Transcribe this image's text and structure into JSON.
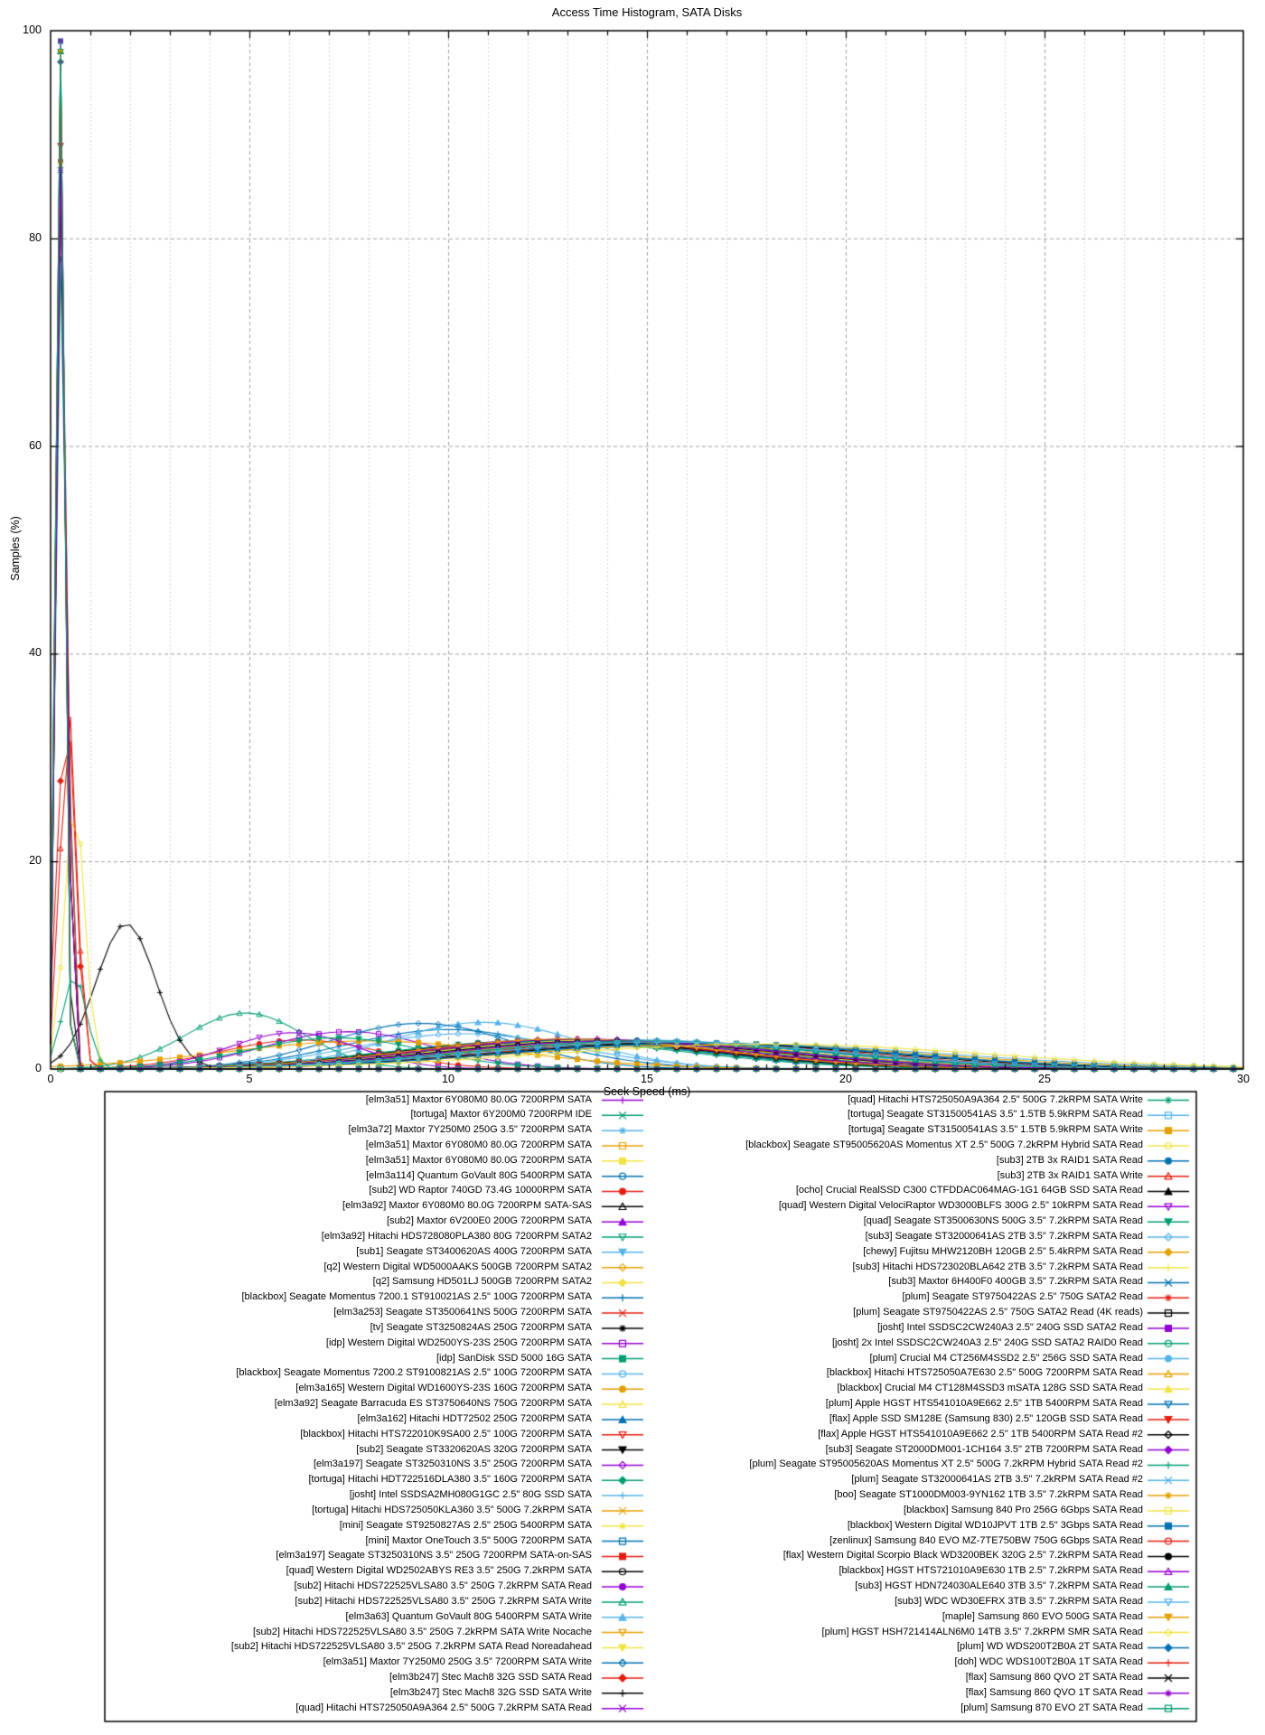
{
  "title": "Access Time Histogram, SATA Disks",
  "axes": {
    "xlabel": "Seek Speed (ms)",
    "ylabel": "Samples (%)",
    "x_ticks": [
      0,
      5,
      10,
      15,
      20,
      25,
      30
    ],
    "y_ticks": [
      0,
      20,
      40,
      60,
      80,
      100
    ]
  },
  "style": {
    "background": "#ffffff",
    "border_color": "#000000",
    "grid_minor_color": "#c8c8c8",
    "grid_major_color": "#a0a0a0",
    "palette": [
      "#9400d3",
      "#009e73",
      "#56b4e9",
      "#e69f00",
      "#f0e442",
      "#0072b2",
      "#e51e10",
      "#000000"
    ],
    "marker_cycle": [
      "plus",
      "cross",
      "asterisk",
      "square-open",
      "square-filled",
      "circle-open",
      "circle-filled",
      "triangle-up-open",
      "triangle-up-filled",
      "triangle-down-open",
      "triangle-down-filled",
      "diamond-open",
      "diamond-filled"
    ]
  },
  "chart_data": {
    "type": "line",
    "title": "Access Time Histogram, SATA Disks",
    "xlabel": "Seek Speed (ms)",
    "ylabel": "Samples (%)",
    "xlim": [
      0,
      30
    ],
    "ylim": [
      0,
      100
    ],
    "grid": true,
    "legend_position": "below",
    "bin_ms": 0.5,
    "series": [
      {
        "label": "[elm3a51] Maxtor 6Y080M0 80.0G 7200RPM SATA",
        "peak_ms": 13.5,
        "peak_pct": 2.7,
        "spread_ms": 4.2
      },
      {
        "label": "[tortuga] Maxtor 6Y200M0 7200RPM IDE",
        "peak_ms": 14.2,
        "peak_pct": 2.5,
        "spread_ms": 4.5
      },
      {
        "label": "[elm3a72] Maxtor 7Y250M0 250G 3.5\" 7200RPM SATA",
        "peak_ms": 12.8,
        "peak_pct": 2.7,
        "spread_ms": 4.0
      },
      {
        "label": "[elm3a51] Maxtor 6Y080M0 80.0G 7200RPM SATA",
        "peak_ms": 14.6,
        "peak_pct": 2.5,
        "spread_ms": 4.4
      },
      {
        "label": "[elm3a51] Maxtor 6Y080M0 80.0G 7200RPM SATA",
        "peak_ms": 13.9,
        "peak_pct": 2.6,
        "spread_ms": 4.3
      },
      {
        "label": "[elm3a114] Quantum GoVault 80G 5400RPM SATA",
        "peak_ms": 15.5,
        "peak_pct": 2.4,
        "spread_ms": 4.8
      },
      {
        "label": "[sub2] WD Raptor 740GD 73.4G 10000RPM SATA",
        "peak_ms": 6.3,
        "peak_pct": 2.8,
        "spread_ms": 2.0
      },
      {
        "label": "[elm3a92] Maxtor 6Y080M0 80.0G 7200RPM SATA-SAS",
        "peak_ms": 13.2,
        "peak_pct": 2.6,
        "spread_ms": 4.1
      },
      {
        "label": "[sub2] Maxtor 6V200E0 200G 7200RPM SATA",
        "peak_ms": 12.5,
        "peak_pct": 2.8,
        "spread_ms": 3.8
      },
      {
        "label": "[elm3a92] Hitachi HDS728080PLA380 80G 7200RPM SATA2",
        "peak_ms": 12.2,
        "peak_pct": 2.7,
        "spread_ms": 3.8
      },
      {
        "label": "[sub1] Seagate ST3400620AS 400G 7200RPM SATA",
        "peak_ms": 13.6,
        "peak_pct": 2.6,
        "spread_ms": 4.2
      },
      {
        "label": "[q2] Western Digital WD5000AAKS 500GB 7200RPM SATA2",
        "peak_ms": 13.0,
        "peak_pct": 2.7,
        "spread_ms": 4.1
      },
      {
        "label": "[q2] Samsung HD501LJ 500GB 7200RPM SATA2",
        "peak_ms": 13.4,
        "peak_pct": 2.6,
        "spread_ms": 4.2
      },
      {
        "label": "[blackbox] Seagate Momentus 7200.1 ST910021AS 2.5\" 100G 7200RPM SATA",
        "peak_ms": 10.0,
        "peak_pct": 3.8,
        "spread_ms": 2.6
      },
      {
        "label": "[elm3a253] Seagate ST3500641NS 500G 7200RPM SATA",
        "peak_ms": 13.0,
        "peak_pct": 2.6,
        "spread_ms": 4.0
      },
      {
        "label": "[tv] Seagate ST3250824AS 250G 7200RPM SATA",
        "peak_ms": 13.3,
        "peak_pct": 2.5,
        "spread_ms": 4.1
      },
      {
        "label": "[idp] Western Digital WD2500YS-23S 250G 7200RPM SATA",
        "peak_ms": 7.5,
        "peak_pct": 3.6,
        "spread_ms": 2.1
      },
      {
        "label": "[idp] SanDisk SSD 5000 16G SATA",
        "peak_ms": 0.3,
        "peak_pct": 84,
        "spread_ms": 0.13
      },
      {
        "label": "[blackbox] Seagate Momentus 7200.2 ST9100821AS 2.5\" 100G 7200RPM SATA",
        "peak_ms": 10.4,
        "peak_pct": 3.4,
        "spread_ms": 2.8
      },
      {
        "label": "[elm3a165] Western Digital WD1600YS-23S 160G 7200RPM SATA",
        "peak_ms": 13.7,
        "peak_pct": 2.6,
        "spread_ms": 4.2
      },
      {
        "label": "[elm3a92] Seagate Barracuda ES ST3750640NS 750G 7200RPM SATA",
        "peak_ms": 14.0,
        "peak_pct": 2.6,
        "spread_ms": 4.4
      },
      {
        "label": "[elm3a162] Hitachi HDT72502 250G 7200RPM SATA",
        "peak_ms": 12.6,
        "peak_pct": 2.7,
        "spread_ms": 3.9
      },
      {
        "label": "[blackbox] Hitachi HTS722010K9SA00 2.5\" 100G 7200RPM SATA",
        "peak_ms": 14.8,
        "peak_pct": 2.7,
        "spread_ms": 3.9
      },
      {
        "label": "[sub2] Seagate ST3320620AS 320G 7200RPM SATA",
        "peak_ms": 13.2,
        "peak_pct": 2.7,
        "spread_ms": 4.0
      },
      {
        "label": "[elm3a197] Seagate ST3250310NS 3.5\" 250G 7200RPM SATA",
        "peak_ms": 12.9,
        "peak_pct": 2.7,
        "spread_ms": 4.0
      },
      {
        "label": "[tortuga] Hitachi HDT722516DLA380 3.5\" 160G 7200RPM SATA",
        "peak_ms": 12.4,
        "peak_pct": 2.7,
        "spread_ms": 3.9
      },
      {
        "label": "[josht] Intel SSDSA2MH080G1GC 2.5\" 80G SSD SATA",
        "peak_ms": 0.3,
        "peak_pct": 97,
        "spread_ms": 0.12
      },
      {
        "label": "[tortuga] Hitachi HDS725050KLA360 3.5\" 500G 7.2kRPM SATA",
        "peak_ms": 13.8,
        "peak_pct": 2.6,
        "spread_ms": 4.3
      },
      {
        "label": "[mini] Seagate ST9250827AS 2.5\" 250G 5400RPM SATA",
        "peak_ms": 16.5,
        "peak_pct": 2.4,
        "spread_ms": 5.0
      },
      {
        "label": "[mini] Maxtor OneTouch 3.5\" 500G 7200RPM SATA",
        "peak_ms": 14.3,
        "peak_pct": 2.5,
        "spread_ms": 4.5
      },
      {
        "label": "[elm3a197] Seagate ST3250310NS 3.5\" 250G 7200RPM SATA-on-SAS",
        "peak_ms": 13.1,
        "peak_pct": 2.6,
        "spread_ms": 4.1
      },
      {
        "label": "[quad] Western Digital WD2502ABYS RE3 3.5\" 250G 7.2kRPM SATA",
        "peak_ms": 12.7,
        "peak_pct": 2.8,
        "spread_ms": 3.9
      },
      {
        "label": "[sub2] Hitachi HDS722525VLSA80 3.5\" 250G 7.2kRPM SATA Read",
        "peak_ms": 13.5,
        "peak_pct": 2.7,
        "spread_ms": 4.1
      },
      {
        "label": "[sub2] Hitachi HDS722525VLSA80 3.5\" 250G 7.2kRPM SATA Write",
        "peak_ms": 4.9,
        "peak_pct": 5.4,
        "spread_ms": 1.5
      },
      {
        "label": "[elm3a63] Quantum GoVault 80G 5400RPM SATA Write",
        "peak_ms": 10.9,
        "peak_pct": 4.5,
        "spread_ms": 2.4
      },
      {
        "label": "[sub2] Hitachi HDS722525VLSA80 3.5\" 250G 7.2kRPM SATA Write Nocache",
        "peak_ms": 14.1,
        "peak_pct": 2.6,
        "spread_ms": 4.3
      },
      {
        "label": "[sub2] Hitachi HDS722525VLSA80 3.5\" 250G 7.2kRPM SATA Read Noreadahead",
        "peak_ms": 13.9,
        "peak_pct": 2.5,
        "spread_ms": 4.2
      },
      {
        "label": "[elm3a51] Maxtor 7Y250M0 250G 3.5\" 7200RPM SATA Write",
        "peak_ms": 9.3,
        "peak_pct": 4.4,
        "spread_ms": 2.3
      },
      {
        "label": "[elm3b247] Stec Mach8 32G SSD SATA Read",
        "peak_ms": 0.4,
        "peak_pct": 35,
        "spread_ms": 0.22
      },
      {
        "label": "[elm3b247] Stec Mach8 32G SSD SATA Write",
        "peak_ms": 1.9,
        "peak_pct": 14,
        "spread_ms": 0.75
      },
      {
        "label": "[quad] Hitachi HTS725050A9A364 2.5\" 500G 7.2kRPM SATA Read",
        "peak_ms": 14.5,
        "peak_pct": 2.7,
        "spread_ms": 4.2
      },
      {
        "label": "[quad] Hitachi HTS725050A9A364 2.5\" 500G 7.2kRPM SATA Write",
        "peak_ms": 13.6,
        "peak_pct": 2.8,
        "spread_ms": 4.0
      },
      {
        "label": "[tortuga] Seagate ST31500541AS 3.5\" 1.5TB 5.9kRPM SATA Read",
        "peak_ms": 17.0,
        "peak_pct": 2.4,
        "spread_ms": 5.5
      },
      {
        "label": "[tortuga] Seagate ST31500541AS 3.5\" 1.5TB 5.9kRPM SATA Write",
        "peak_ms": 8.0,
        "peak_pct": 2.7,
        "spread_ms": 3.6
      },
      {
        "label": "[blackbox] Seagate ST95005620AS Momentus XT 2.5\" 500G 7.2kRPM Hybrid SATA Read",
        "peak_ms": 0.6,
        "peak_pct": 26,
        "spread_ms": 0.25
      },
      {
        "label": "[sub3] 2TB 3x RAID1 SATA Read",
        "peak_ms": 14.2,
        "peak_pct": 2.8,
        "spread_ms": 4.3
      },
      {
        "label": "[sub3] 2TB 3x RAID1 SATA Write",
        "peak_ms": 0.45,
        "peak_pct": 35,
        "spread_ms": 0.2
      },
      {
        "label": "[ocho] Crucial RealSSD C300 CTFDDAC064MAG-1G1 64GB SSD SATA Read",
        "peak_ms": 0.25,
        "peak_pct": 98,
        "spread_ms": 0.11
      },
      {
        "label": "[quad] Western Digital VelociRaptor WD3000BLFS 300G 2.5\" 10kRPM SATA Read",
        "peak_ms": 6.1,
        "peak_pct": 3.5,
        "spread_ms": 1.6
      },
      {
        "label": "[quad] Seagate ST3500630NS 500G 3.5\" 7.2kRPM SATA Read",
        "peak_ms": 7.2,
        "peak_pct": 3.0,
        "spread_ms": 2.2
      },
      {
        "label": "[sub3] Seagate ST32000641AS 2TB 3.5\" 7.2kRPM SATA Read",
        "peak_ms": 14.8,
        "peak_pct": 2.8,
        "spread_ms": 4.4
      },
      {
        "label": "[chewy] Fujitsu MHW2120BH 120GB 2.5\" 5.4kRPM SATA Read",
        "peak_ms": 16.8,
        "peak_pct": 2.4,
        "spread_ms": 5.2
      },
      {
        "label": "[sub3] Hitachi HDS723020BLA642 2TB 3.5\" 7.2kRPM SATA Read",
        "peak_ms": 13.9,
        "peak_pct": 2.8,
        "spread_ms": 4.2
      },
      {
        "label": "[sub3] Maxtor 6H400F0 400GB 3.5\" 7.2kRPM SATA Read",
        "peak_ms": 14.4,
        "peak_pct": 2.6,
        "spread_ms": 4.4
      },
      {
        "label": "[plum] Seagate ST9750422AS 2.5\" 750G SATA2 Read",
        "peak_ms": 15.6,
        "peak_pct": 2.6,
        "spread_ms": 4.6
      },
      {
        "label": "[plum] Seagate ST9750422AS 2.5\" 750G SATA2 Read (4K reads)",
        "peak_ms": 15.2,
        "peak_pct": 2.5,
        "spread_ms": 4.6
      },
      {
        "label": "[josht] Intel SSDSC2CW240A3 2.5\" 240G SSD SATA2 Read",
        "peak_ms": 0.25,
        "peak_pct": 99,
        "spread_ms": 0.1
      },
      {
        "label": "[josht] 2x Intel SSDSC2CW240A3 2.5\" 240G SSD SATA2 RAID0 Read",
        "peak_ms": 0.25,
        "peak_pct": 99,
        "spread_ms": 0.1
      },
      {
        "label": "[plum] Crucial M4 CT256M4SSD2 2.5\" 256G SSD SATA Read",
        "peak_ms": 0.3,
        "peak_pct": 97,
        "spread_ms": 0.11
      },
      {
        "label": "[blackbox] Hitachi HTS725050A7E630 2.5\" 500G 7200RPM SATA Read",
        "peak_ms": 14.6,
        "peak_pct": 2.7,
        "spread_ms": 4.3
      },
      {
        "label": "[blackbox] Crucial M4 CT128M4SSD3 mSATA 128G SSD SATA Read",
        "peak_ms": 0.3,
        "peak_pct": 97,
        "spread_ms": 0.11
      },
      {
        "label": "[plum] Apple HGST HTS541010A9E662 2.5\" 1TB 5400RPM SATA Read",
        "peak_ms": 16.2,
        "peak_pct": 2.5,
        "spread_ms": 4.9
      },
      {
        "label": "[flax] Apple SSD SM128E (Samsung 830) 2.5\" 120GB SSD SATA Read",
        "peak_ms": 0.3,
        "peak_pct": 97,
        "spread_ms": 0.12
      },
      {
        "label": "[flax] Apple HGST HTS541010A9E662 2.5\" 1TB 5400RPM SATA Read #2",
        "peak_ms": 16.0,
        "peak_pct": 2.5,
        "spread_ms": 4.8
      },
      {
        "label": "[sub3] Seagate ST2000DM001-1CH164 3.5\" 2TB 7200RPM SATA Read",
        "peak_ms": 13.3,
        "peak_pct": 2.9,
        "spread_ms": 4.0
      },
      {
        "label": "[plum] Seagate ST95005620AS Momentus XT 2.5\" 500G 7.2kRPM Hybrid SATA Read #2",
        "peak_ms": 0.6,
        "peak_pct": 9,
        "spread_ms": 0.3
      },
      {
        "label": "[plum] Seagate ST32000641AS 2TB 3.5\" 7.2kRPM SATA Read #2",
        "peak_ms": 14.9,
        "peak_pct": 2.7,
        "spread_ms": 4.4
      },
      {
        "label": "[boo] Seagate ST1000DM003-9YN162 1TB 3.5\" 7.2kRPM SATA Read",
        "peak_ms": 13.0,
        "peak_pct": 2.9,
        "spread_ms": 3.9
      },
      {
        "label": "[blackbox] Samsung 840 Pro 256G 6Gbps SATA Read",
        "peak_ms": 0.25,
        "peak_pct": 98,
        "spread_ms": 0.1
      },
      {
        "label": "[blackbox] Western Digital WD10JPVT 1TB 2.5\" 3Gbps SATA Read",
        "peak_ms": 16.4,
        "peak_pct": 2.5,
        "spread_ms": 4.9
      },
      {
        "label": "[zenlinux] Samsung 840 EVO MZ-7TE750BW 750G 6Gbps SATA Read",
        "peak_ms": 0.3,
        "peak_pct": 97,
        "spread_ms": 0.11
      },
      {
        "label": "[flax] Western Digital Scorpio Black WD3200BEK 320G 2.5\" 7.2kRPM SATA Read",
        "peak_ms": 14.0,
        "peak_pct": 2.7,
        "spread_ms": 4.2
      },
      {
        "label": "[blackbox] HGST HTS721010A9E630 1TB 2.5\" 7.2kRPM SATA Read",
        "peak_ms": 14.2,
        "peak_pct": 2.7,
        "spread_ms": 4.2
      },
      {
        "label": "[sub3] HGST HDN724030ALE640 3TB 3.5\" 7.2kRPM SATA Read",
        "peak_ms": 15.0,
        "peak_pct": 2.7,
        "spread_ms": 4.5
      },
      {
        "label": "[sub3] WDC WD30EFRX 3TB 3.5\" 7.2kRPM SATA Read",
        "peak_ms": 15.4,
        "peak_pct": 2.6,
        "spread_ms": 4.6
      },
      {
        "label": "[maple] Samsung 860 EVO 500G SATA Read",
        "peak_ms": 0.25,
        "peak_pct": 98,
        "spread_ms": 0.1
      },
      {
        "label": "[plum] HGST HSH721414ALN6M0 14TB 3.5\" 7.2kRPM SMR SATA Read",
        "peak_ms": 18.0,
        "peak_pct": 2.4,
        "spread_ms": 5.5
      },
      {
        "label": "[plum] WD WDS200T2B0A 2T SATA Read",
        "peak_ms": 0.25,
        "peak_pct": 97,
        "spread_ms": 0.1
      },
      {
        "label": "[doh] WDC WDS100T2B0A 1T SATA Read",
        "peak_ms": 0.25,
        "peak_pct": 97,
        "spread_ms": 0.1
      },
      {
        "label": "[flax] Samsung 860 QVO 2T SATA Read",
        "peak_ms": 0.3,
        "peak_pct": 96,
        "spread_ms": 0.11
      },
      {
        "label": "[flax] Samsung 860 QVO 1T SATA Read",
        "peak_ms": 0.3,
        "peak_pct": 96,
        "spread_ms": 0.11
      },
      {
        "label": "[plum] Samsung 870 EVO 2T SATA Read",
        "peak_ms": 0.25,
        "peak_pct": 98,
        "spread_ms": 0.1
      }
    ]
  }
}
